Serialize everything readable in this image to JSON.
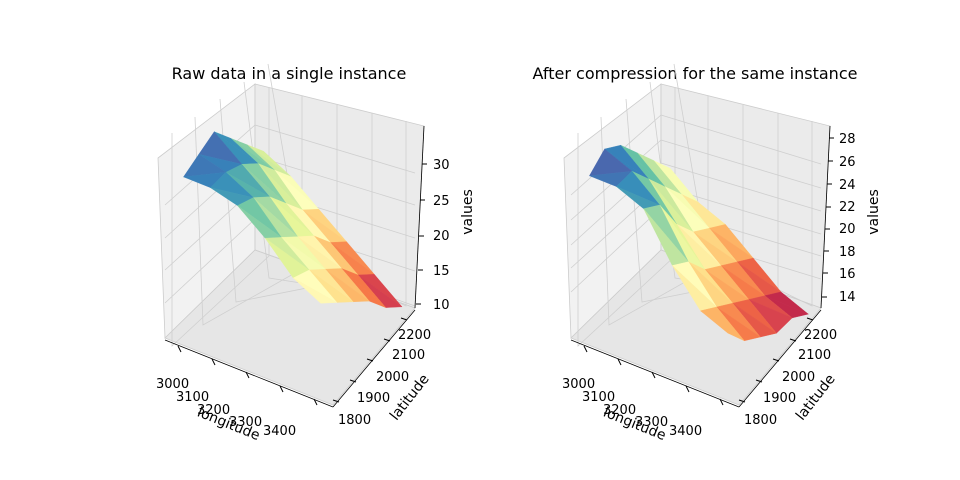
{
  "chart_data": [
    {
      "type": "surface3d",
      "title": "Raw data in a single instance",
      "xlabel": "longitude",
      "ylabel": "latitude",
      "zlabel": "values",
      "xticks": [
        "3000",
        "3100",
        "3200",
        "3300",
        "3400"
      ],
      "yticks": [
        "1800",
        "1900",
        "2000",
        "2100",
        "2200"
      ],
      "zticks": [
        "10",
        "15",
        "20",
        "25",
        "30"
      ],
      "xlim": [
        2950,
        3450
      ],
      "ylim": [
        1780,
        2240
      ],
      "zlim": [
        9,
        34
      ],
      "colormap": "Spectral",
      "grid": true,
      "x": [
        3000,
        3080,
        3160,
        3240,
        3320,
        3400
      ],
      "y": [
        1820,
        1900,
        1980,
        2060,
        2140,
        2220
      ],
      "values": [
        [
          31,
          31,
          30,
          27,
          23,
          21
        ],
        [
          32,
          31,
          29,
          25,
          22,
          19
        ],
        [
          33,
          30,
          27,
          23,
          20,
          17
        ],
        [
          30,
          28,
          24,
          21,
          18,
          15
        ],
        [
          27,
          25,
          21,
          18,
          15,
          12
        ],
        [
          24,
          22,
          19,
          16,
          13,
          10
        ]
      ]
    },
    {
      "type": "surface3d",
      "title": "After compression for the same instance",
      "xlabel": "longitude",
      "ylabel": "latitude",
      "zlabel": "values",
      "xticks": [
        "3000",
        "3100",
        "3200",
        "3300",
        "3400"
      ],
      "yticks": [
        "1800",
        "1900",
        "2000",
        "2100",
        "2200"
      ],
      "zticks": [
        "14",
        "16",
        "18",
        "20",
        "22",
        "24",
        "26",
        "28"
      ],
      "xlim": [
        2950,
        3450
      ],
      "ylim": [
        1780,
        2240
      ],
      "zlim": [
        13,
        28.8
      ],
      "colormap": "Spectral",
      "grid": true,
      "x": [
        3000,
        3080,
        3160,
        3240,
        3320,
        3400
      ],
      "y": [
        1820,
        1900,
        1980,
        2060,
        2140,
        2220
      ],
      "values": [
        [
          27,
          27,
          26,
          22,
          19,
          18
        ],
        [
          28,
          27,
          25,
          21,
          18,
          16
        ],
        [
          27,
          25,
          22,
          19,
          17,
          15
        ],
        [
          25,
          23,
          20,
          18,
          16,
          14
        ],
        [
          23,
          21,
          19,
          17,
          15,
          14
        ],
        [
          21,
          19,
          18,
          16,
          14,
          13
        ]
      ]
    }
  ]
}
